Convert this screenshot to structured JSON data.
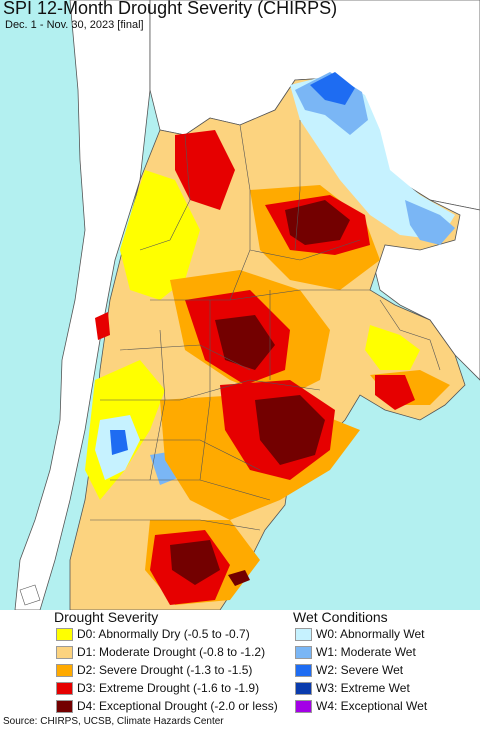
{
  "title": "SPI 12-Month Drought Severity (CHIRPS)",
  "subtitle": "Dec. 1 - Nov. 30, 2023 [final]",
  "colors": {
    "ocean": "#b3f0f0",
    "land_outside": "#ffffff",
    "border": "#555555",
    "D0": "#ffff00",
    "D1": "#fcd37f",
    "D2": "#ffaa00",
    "D3": "#e60000",
    "D4": "#730000",
    "W0": "#c6f2ff",
    "W1": "#7ab6f5",
    "W2": "#1e6cf2",
    "W3": "#0a3bad",
    "W4": "#a300e6"
  },
  "legend": {
    "drought_heading": "Drought Severity",
    "wet_heading": "Wet Conditions",
    "drought_items": [
      {
        "code": "D0",
        "label": "D0: Abnormally Dry (-0.5 to -0.7)",
        "color": "#ffff00"
      },
      {
        "code": "D1",
        "label": "D1: Moderate Drought (-0.8 to -1.2)",
        "color": "#fcd37f"
      },
      {
        "code": "D2",
        "label": "D2: Severe Drought (-1.3 to -1.5)",
        "color": "#ffaa00"
      },
      {
        "code": "D3",
        "label": "D3: Extreme Drought (-1.6 to -1.9)",
        "color": "#e60000"
      },
      {
        "code": "D4",
        "label": "D4: Exceptional Drought (-2.0 or less)",
        "color": "#730000"
      }
    ],
    "wet_items": [
      {
        "code": "W0",
        "label": "W0: Abnormally Wet",
        "color": "#c6f2ff"
      },
      {
        "code": "W1",
        "label": "W1: Moderate Wet",
        "color": "#7ab6f5"
      },
      {
        "code": "W2",
        "label": "W2: Severe Wet",
        "color": "#1e6cf2"
      },
      {
        "code": "W3",
        "label": "W3: Extreme Wet",
        "color": "#0a3bad"
      },
      {
        "code": "W4",
        "label": "W4: Exceptional Wet",
        "color": "#a300e6"
      }
    ]
  },
  "source": "Source: CHIRPS, UCSB, Climate Hazards Center"
}
